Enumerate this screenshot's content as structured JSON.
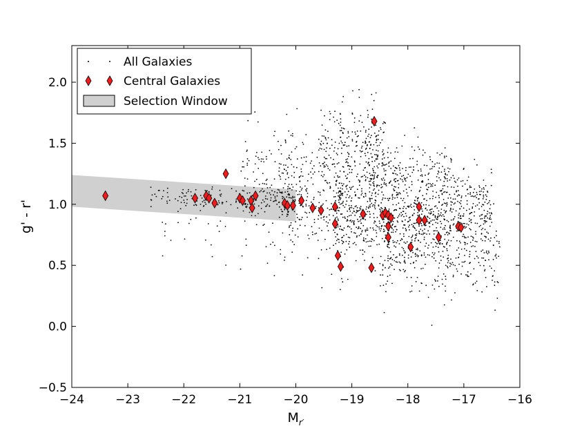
{
  "chart_data": {
    "type": "scatter",
    "title": "",
    "xlabel": "M",
    "xlabel_subscript": "r′",
    "ylabel": "g' - r'",
    "xlim": [
      -24,
      -16
    ],
    "ylim": [
      -0.5,
      2.3
    ],
    "x_ticks": [
      -24,
      -23,
      -22,
      -21,
      -20,
      -19,
      -18,
      -17,
      -16
    ],
    "x_tick_labels": [
      "−24",
      "−23",
      "−22",
      "−21",
      "−20",
      "−19",
      "−18",
      "−17",
      "−16"
    ],
    "y_ticks": [
      -0.5,
      0.0,
      0.5,
      1.0,
      1.5,
      2.0
    ],
    "y_tick_labels": [
      "−0.5",
      "0.0",
      "0.5",
      "1.0",
      "1.5",
      "2.0"
    ],
    "grid": false,
    "legend_position": "top-left",
    "legend": [
      {
        "label": "All Galaxies",
        "marker": "dot"
      },
      {
        "label": "Central Galaxies",
        "marker": "diamond"
      },
      {
        "label": "Selection Window",
        "marker": "band"
      }
    ],
    "colors": {
      "all_galaxies": "#000000",
      "central_galaxies": "#ee1c1c",
      "selection_window": "#d0d0d0"
    },
    "selection_window": {
      "x": [
        -24,
        -20
      ],
      "upper": [
        1.24,
        1.12
      ],
      "lower": [
        0.98,
        0.86
      ]
    },
    "all_galaxies_note": "dense point cloud; approximately 2000 points, generated from density regions estimated from the figure",
    "all_galaxies_regions": [
      {
        "x_range": [
          -22.6,
          -20.0
        ],
        "y_center": 1.05,
        "y_spread": 0.07,
        "count": 140
      },
      {
        "x_range": [
          -22.4,
          -20.0
        ],
        "y_center": 0.9,
        "y_spread": 0.35,
        "count": 60
      },
      {
        "x_range": [
          -21.0,
          -19.8
        ],
        "y_center": 1.2,
        "y_spread": 0.35,
        "count": 140
      },
      {
        "x_range": [
          -20.3,
          -19.0
        ],
        "y_center": 1.0,
        "y_spread": 0.4,
        "count": 260
      },
      {
        "x_range": [
          -19.6,
          -18.4
        ],
        "y_center": 1.45,
        "y_spread": 0.32,
        "count": 260
      },
      {
        "x_range": [
          -19.3,
          -16.5
        ],
        "y_center": 0.9,
        "y_spread": 0.3,
        "count": 900
      },
      {
        "x_range": [
          -18.5,
          -16.3
        ],
        "y_center": 0.55,
        "y_spread": 0.3,
        "count": 280
      },
      {
        "x_range": [
          -18.8,
          -17.2
        ],
        "y_center": 1.25,
        "y_spread": 0.2,
        "count": 200
      }
    ],
    "central_galaxies": {
      "x": [
        -23.4,
        -21.8,
        -21.6,
        -21.55,
        -21.45,
        -21.25,
        -21.0,
        -20.95,
        -20.8,
        -20.78,
        -20.72,
        -20.2,
        -20.15,
        -20.05,
        -19.9,
        -19.7,
        -19.55,
        -19.3,
        -19.3,
        -19.25,
        -19.2,
        -18.8,
        -18.65,
        -18.6,
        -18.45,
        -18.4,
        -18.35,
        -18.3,
        -18.35,
        -18.35,
        -17.95,
        -17.8,
        -17.8,
        -17.7,
        -17.45,
        -17.1,
        -17.05
      ],
      "y": [
        1.07,
        1.05,
        1.07,
        1.05,
        1.01,
        1.25,
        1.05,
        1.03,
        1.03,
        0.97,
        1.07,
        1.01,
        0.99,
        0.99,
        1.03,
        0.97,
        0.95,
        0.84,
        0.98,
        0.58,
        0.49,
        0.92,
        0.48,
        1.68,
        0.91,
        0.93,
        0.91,
        0.89,
        0.82,
        0.73,
        0.65,
        0.98,
        0.87,
        0.87,
        0.73,
        0.82,
        0.81
      ]
    }
  }
}
